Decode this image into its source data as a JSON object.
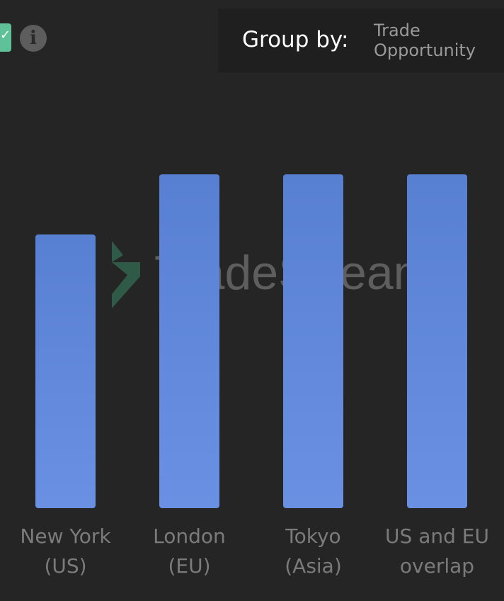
{
  "toolbar": {
    "checkbox_icon": "check-icon",
    "info_icon": "info-icon",
    "group_by_label": "Group by:",
    "group_by_value": "Trade Opportunity"
  },
  "watermark": "TradeStream",
  "colors": {
    "bar": "#5b85d6",
    "background": "#252525",
    "accent": "#5ec197"
  },
  "chart_data": {
    "type": "bar",
    "categories": [
      "New York\n(US)",
      "London\n(EU)",
      "Tokyo\n(Asia)",
      "US and EU\noverlap"
    ],
    "values": [
      0.82,
      1.0,
      1.0,
      1.0
    ],
    "title": "",
    "xlabel": "",
    "ylabel": "",
    "ylim": [
      0,
      1.0
    ],
    "grid": false
  }
}
